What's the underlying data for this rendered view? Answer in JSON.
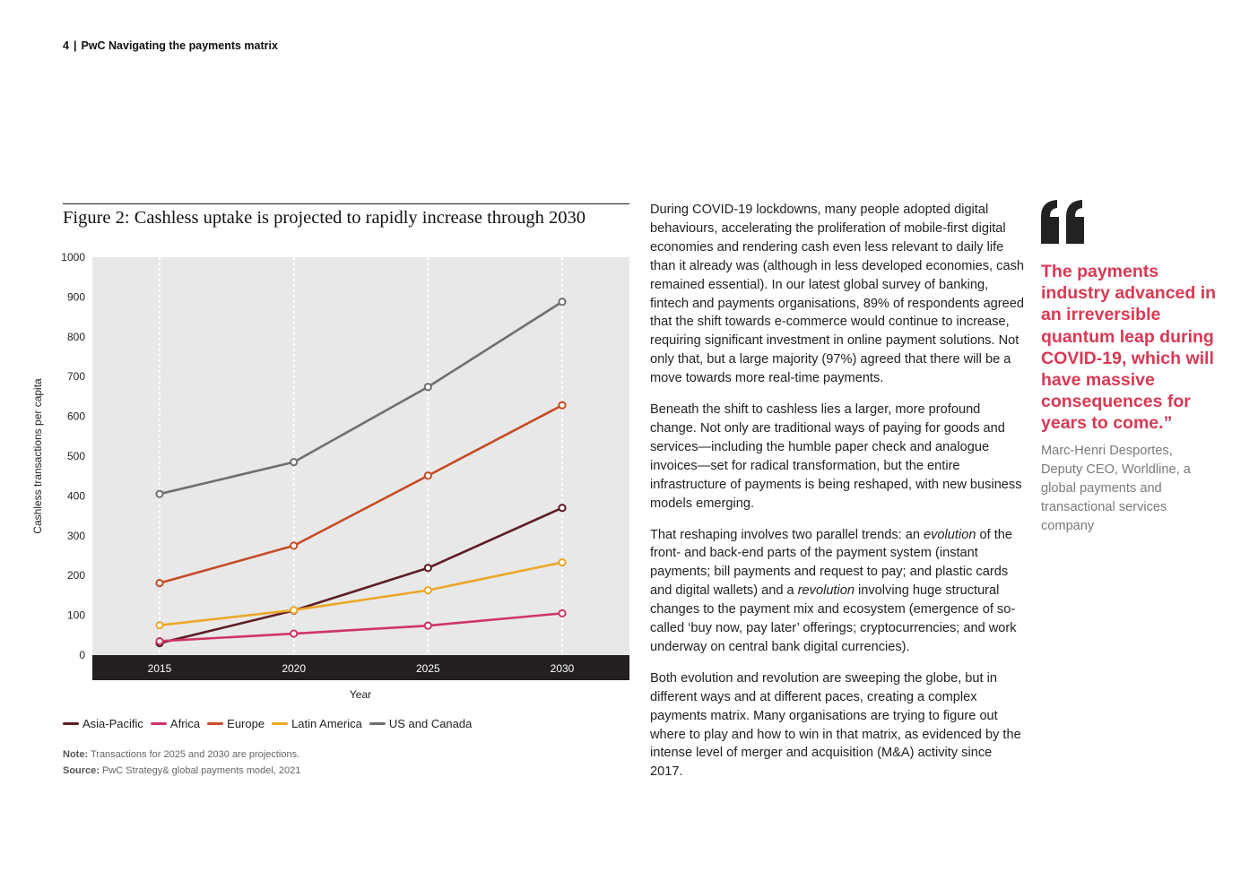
{
  "header": {
    "page_number": "4",
    "separator": "|",
    "title": "PwC Navigating the payments matrix"
  },
  "figure": {
    "title": "Figure 2: Cashless uptake is projected to rapidly increase through 2030",
    "note_label": "Note:",
    "note_text": "Transactions for 2025 and 2030 are projections.",
    "source_label": "Source:",
    "source_text": "PwC Strategy& global payments model, 2021"
  },
  "chart_data": {
    "type": "line",
    "title": "Figure 2: Cashless uptake is projected to rapidly increase through 2030",
    "xlabel": "Year",
    "ylabel": "Cashless transactions per capita",
    "ylim": [
      0,
      1000
    ],
    "yticks": [
      "0",
      "100",
      "200",
      "300",
      "400",
      "500",
      "600",
      "700",
      "800",
      "900",
      "1000"
    ],
    "x": [
      "2015",
      "2020",
      "2025",
      "2030"
    ],
    "legend_position": "bottom",
    "series": [
      {
        "name": "Asia-Pacific",
        "color": "#5e1c26",
        "values": [
          30,
          112,
          219,
          370
        ]
      },
      {
        "name": "Africa",
        "color": "#cf3563",
        "values": [
          35,
          54,
          74,
          105
        ]
      },
      {
        "name": "Europe",
        "color": "#c64b26",
        "values": [
          181,
          275,
          451,
          628
        ]
      },
      {
        "name": "Latin America",
        "color": "#eba728",
        "values": [
          75,
          113,
          163,
          233
        ]
      },
      {
        "name": "US and Canada",
        "color": "#6f6f6f",
        "values": [
          405,
          485,
          674,
          888
        ]
      }
    ]
  },
  "body": {
    "p1": "During COVID-19 lockdowns, many people adopted digital behaviours, accelerating the proliferation of mobile-first digital economies and rendering cash even less relevant to daily life than it already was (although in less developed economies, cash remained essential). In our latest global survey of banking, fintech and payments organisations, 89% of respondents agreed that the shift towards e-commerce would continue to increase, requiring significant investment in online payment solutions. Not only that, but a large majority (97%) agreed that there will be a move towards more real-time payments.",
    "p2": "Beneath the shift to cashless lies a larger, more profound change. Not only are traditional ways of paying for goods and services—including the humble paper check and analogue invoices—set for radical transformation, but the entire infrastructure of payments is being reshaped, with new business models emerging.",
    "p3_a": "That reshaping involves two parallel trends: an ",
    "p3_em1": "evolution",
    "p3_b": " of the front- and back-end parts of the payment system (instant payments; bill payments and request to pay; and plastic cards and digital wallets) and a ",
    "p3_em2": "revolution",
    "p3_c": " involving huge structural changes to the payment mix and ecosystem (emergence of so-called ‘buy now, pay later’ offerings; cryptocurrencies; and work underway on central bank digital currencies).",
    "p4": "Both evolution and revolution are sweeping the globe, but in different ways and at different paces, creating a complex payments matrix. Many organisations are trying to figure out where to play and how to win in that matrix, as evidenced by the intense level of merger and acquisition (M&A) activity since 2017."
  },
  "quote": {
    "text": "The payments industry advanced in an irreversible quantum leap during COVID-19, which will have massive consequences for years to come.”",
    "attribution": "Marc-Henri Desportes, Deputy CEO, Worldline, a global payments and transactional services company",
    "color": "#d93954"
  }
}
